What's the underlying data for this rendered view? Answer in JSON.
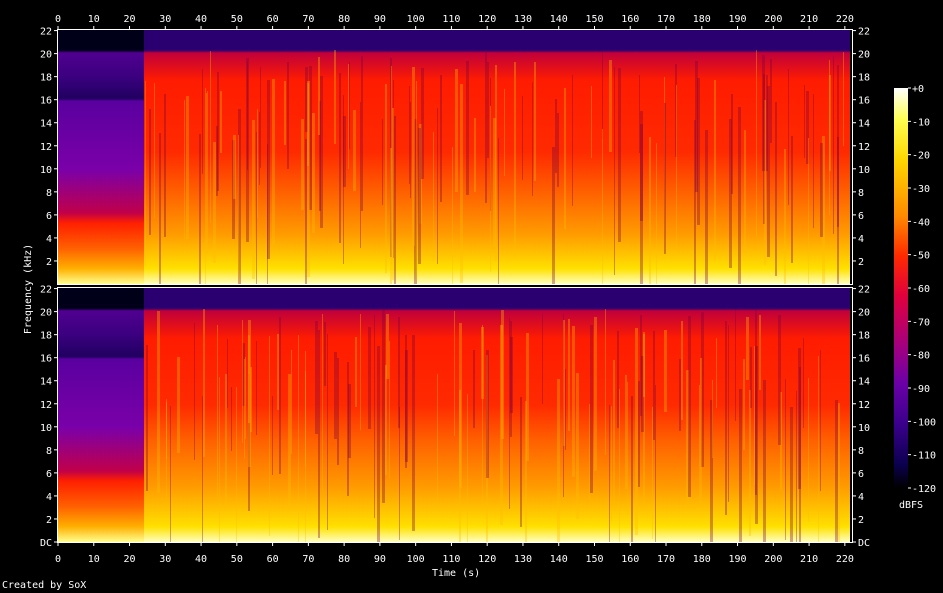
{
  "chart_data": {
    "type": "heatmap",
    "title": "",
    "xlabel": "Time (s)",
    "ylabel": "Frequency (kHz)",
    "colorbar_label": "dBFS",
    "credit": "Created by SoX",
    "x_ticks": [
      "0",
      "10",
      "20",
      "30",
      "40",
      "50",
      "60",
      "70",
      "80",
      "90",
      "100",
      "110",
      "120",
      "130",
      "140",
      "150",
      "160",
      "170",
      "180",
      "190",
      "200",
      "210",
      "220"
    ],
    "xlim": [
      0,
      222
    ],
    "y_ticks": [
      "22",
      "20",
      "18",
      "16",
      "14",
      "12",
      "10",
      "8",
      "6",
      "4",
      "2"
    ],
    "y_ticks_bottom": [
      "22",
      "20",
      "18",
      "16",
      "14",
      "12",
      "10",
      "8",
      "6",
      "4",
      "2",
      "DC"
    ],
    "ylim": [
      0,
      22.05
    ],
    "colorbar_ticks": [
      "+0",
      "-10",
      "-20",
      "-30",
      "-40",
      "-50",
      "-60",
      "-70",
      "-80",
      "-90",
      "-100",
      "-110",
      "-120"
    ],
    "zlim": [
      -120,
      0
    ],
    "channels": [
      {
        "name": "",
        "segments": [
          {
            "start": 0,
            "end": 24,
            "dbfs_at_2khz": -20,
            "dbfs_at_10khz": -75,
            "cutoff_khz": 16
          },
          {
            "start": 24,
            "end": 222,
            "dbfs_at_2khz": -15,
            "dbfs_at_10khz": -45,
            "cutoff_khz": 20
          }
        ]
      },
      {
        "name": "",
        "segments": [
          {
            "start": 0,
            "end": 24,
            "dbfs_at_2khz": -20,
            "dbfs_at_10khz": -75,
            "cutoff_khz": 16
          },
          {
            "start": 24,
            "end": 222,
            "dbfs_at_2khz": -15,
            "dbfs_at_10khz": -45,
            "cutoff_khz": 20
          }
        ]
      }
    ],
    "colors": {
      "background": "#000000",
      "low": "#1a0060",
      "mid_low": "#8a00a0",
      "mid": "#ff1c00",
      "mid_high": "#ff9a00",
      "high": "#ffe000",
      "peak": "#ffffff"
    }
  }
}
